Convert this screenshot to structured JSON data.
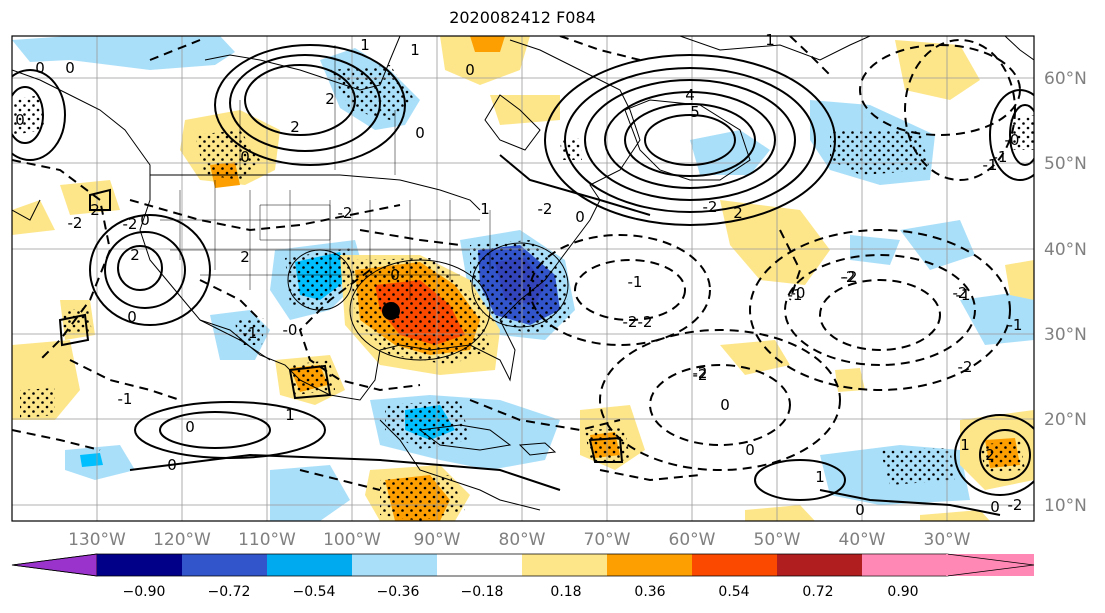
{
  "title": "2020082412 F084",
  "map": {
    "lon_labels": [
      "130°W",
      "120°W",
      "110°W",
      "100°W",
      "90°W",
      "80°W",
      "70°W",
      "60°W",
      "50°W",
      "40°W",
      "30°W"
    ],
    "lat_labels": [
      "60°N",
      "50°N",
      "40°N",
      "30°N",
      "20°N",
      "10°N"
    ],
    "contour_labels": [
      "0",
      "0",
      "-2",
      "2",
      "2",
      "1",
      "0",
      "-2",
      "0",
      "0",
      "-1",
      "0",
      "1",
      "-2",
      "2",
      "0",
      "-2",
      "2",
      "2",
      "-1",
      "0",
      "1",
      "0",
      "1",
      "0",
      "0",
      "1",
      "-2",
      "-1",
      "-2",
      "0",
      "-0",
      "-2",
      "-2",
      "-2",
      "-1",
      "0",
      "-2",
      "-2",
      "0",
      "2",
      "-0",
      "1",
      "1",
      "0",
      "-0",
      "0",
      "-2",
      "-1",
      "-2",
      "-1",
      "-2",
      "5",
      "4",
      "2",
      "-1",
      "-1"
    ],
    "marker": "storm-position"
  },
  "colorbar": {
    "tick_labels": [
      "−0.90",
      "−0.72",
      "−0.54",
      "−0.36",
      "−0.18",
      "0.18",
      "0.36",
      "0.54",
      "0.72",
      "0.90"
    ],
    "colors": [
      "#9933cc",
      "#000088",
      "#3355cc",
      "#00aaee",
      "#aadff9",
      "#ffffff",
      "#fde68a",
      "#fd9f00",
      "#fb4a00",
      "#b01e20",
      "#ff88b4"
    ]
  }
}
